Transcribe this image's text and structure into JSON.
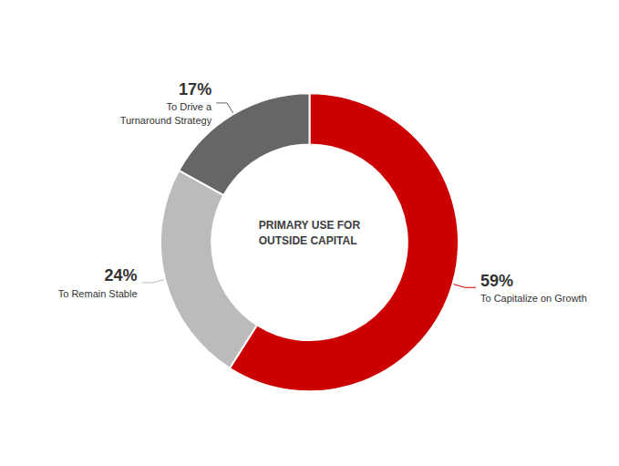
{
  "chart_data": {
    "type": "pie",
    "categories": [
      "To Capitalize on Growth",
      "To Remain Stable",
      "To Drive a\nTurnaround Strategy"
    ],
    "values": [
      59,
      24,
      17
    ],
    "value_labels": [
      "59%",
      "24%",
      "17%"
    ],
    "data_labels": true,
    "colors": [
      "#CC0000",
      "#BBBBBB",
      "#666666"
    ],
    "annotations": [
      "PRIMARY USE FOR",
      "OUTSIDE CAPITAL"
    ]
  }
}
